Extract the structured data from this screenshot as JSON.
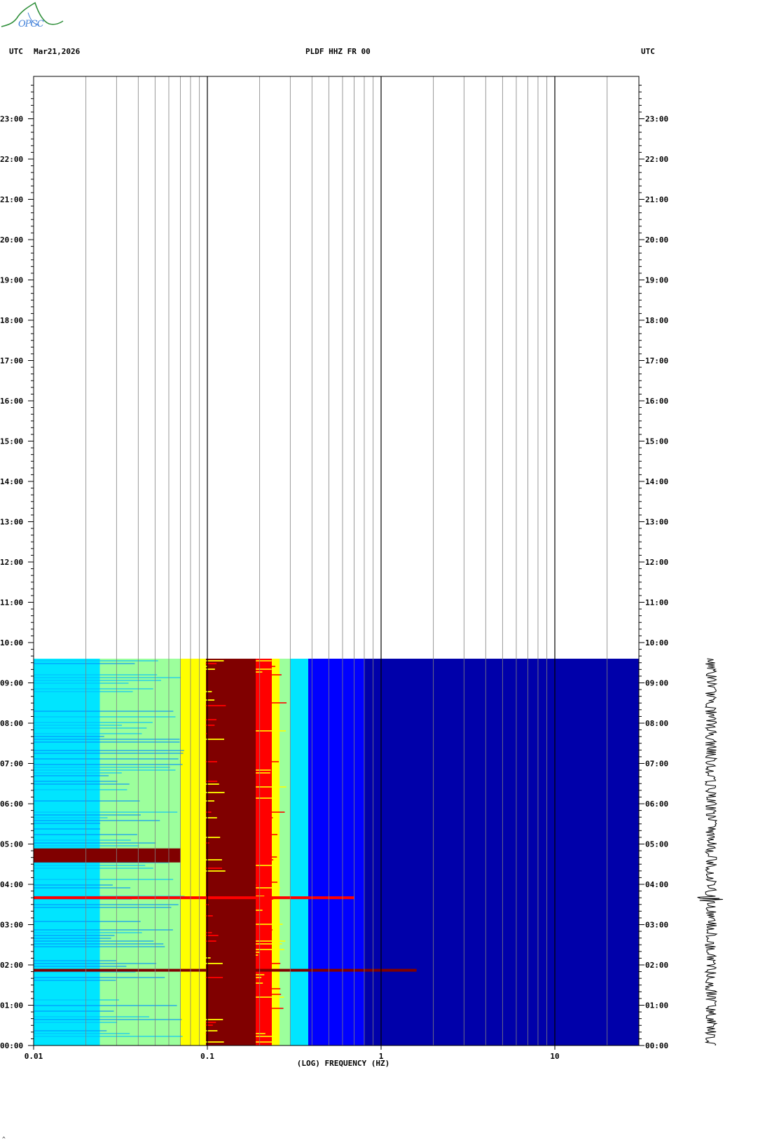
{
  "header": {
    "left_tz": "UTC",
    "date": "Mar21,2026",
    "station": "PLDF HHZ FR 00",
    "right_tz": "UTC"
  },
  "logo": {
    "text": "OPGC"
  },
  "footer_mark": "^",
  "chart_data": {
    "type": "heatmap",
    "title": "PLDF HHZ FR 00",
    "xlabel": "(LOG) FREQUENCY (HZ)",
    "x_scale": "log",
    "xlim": [
      0.01,
      30
    ],
    "x_ticks": [
      "0.01",
      "0.1",
      "1",
      "10"
    ],
    "x_tick_values": [
      0.01,
      0.1,
      1,
      10
    ],
    "ylim_hours": [
      0,
      24
    ],
    "y_ticks": [
      "00:00",
      "01:00",
      "02:00",
      "03:00",
      "04:00",
      "05:00",
      "06:00",
      "07:00",
      "08:00",
      "09:00",
      "10:00",
      "11:00",
      "12:00",
      "13:00",
      "14:00",
      "15:00",
      "16:00",
      "17:00",
      "18:00",
      "19:00",
      "20:00",
      "21:00",
      "22:00",
      "23:00"
    ],
    "data_until_hours": 9.6,
    "colors": {
      "dark_red": "#800000",
      "red": "#ff0000",
      "orange": "#ff8c00",
      "yellow": "#ffff00",
      "light_green": "#9cff9c",
      "cyan": "#00e5ff",
      "blue": "#0000ff",
      "navy": "#0000aa"
    },
    "band_edges_hz": [
      0.01,
      0.024,
      0.05,
      0.07,
      0.098,
      0.19,
      0.235,
      0.26,
      0.3,
      0.38,
      0.5,
      0.8,
      1.6,
      3,
      30
    ],
    "band_colors": [
      "cyan",
      "light_green",
      "light_green",
      "yellow",
      "dark_red",
      "red",
      "yellow",
      "light_green",
      "cyan",
      "blue",
      "blue",
      "navy",
      "navy",
      "navy"
    ],
    "events": [
      {
        "time_hours": 4.7,
        "hz_range": [
          0.01,
          0.07
        ],
        "color": "dark_red"
      },
      {
        "time_hours": 3.65,
        "hz_range": [
          0.01,
          0.7
        ],
        "color": "red"
      },
      {
        "time_hours": 1.85,
        "hz_range": [
          0.01,
          1.6
        ],
        "color": "dark_red"
      }
    ]
  }
}
